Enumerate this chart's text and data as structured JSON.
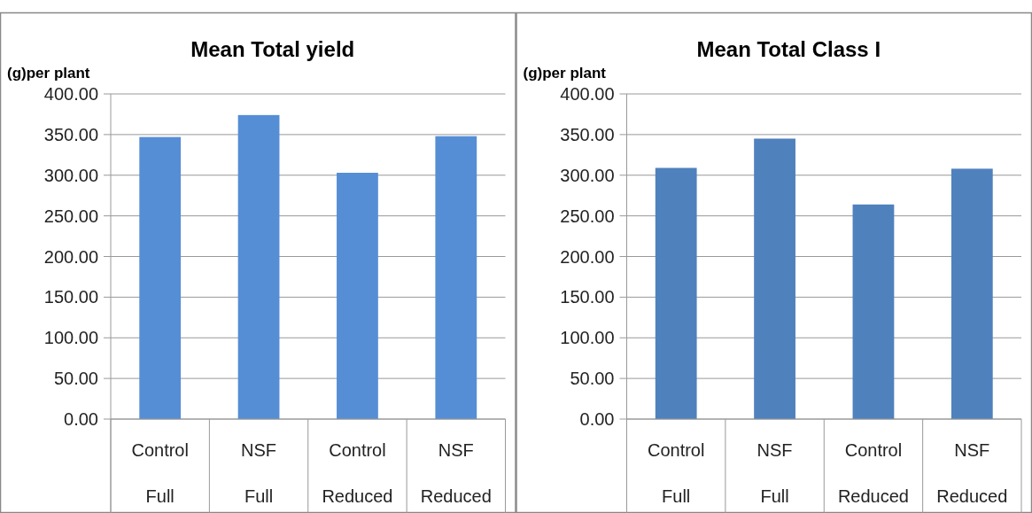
{
  "chart_data": [
    {
      "type": "bar",
      "title": "Mean Total yield",
      "ylabel": "(g)per plant",
      "categories": [
        "Control Full",
        "NSF Full",
        "Control Reduced",
        "NSF Reduced"
      ],
      "values": [
        347,
        374,
        303,
        348
      ],
      "color": "#558ed5",
      "ylim": [
        0,
        400
      ],
      "yticks": [
        {
          "value": 0,
          "label": "0.00"
        },
        {
          "value": 50,
          "label": "50.00"
        },
        {
          "value": 100,
          "label": "100.00"
        },
        {
          "value": 150,
          "label": "150.00"
        },
        {
          "value": 200,
          "label": "200.00"
        },
        {
          "value": 250,
          "label": "250.00"
        },
        {
          "value": 300,
          "label": "300.00"
        },
        {
          "value": 350,
          "label": "350.00"
        },
        {
          "value": 400,
          "label": "400.00"
        }
      ],
      "grid": "y"
    },
    {
      "type": "bar",
      "title": "Mean Total Class I",
      "ylabel": "(g)per plant",
      "categories": [
        "Control Full",
        "NSF Full",
        "Control Reduced",
        "NSF Reduced"
      ],
      "values": [
        309,
        345,
        264,
        308
      ],
      "color": "#4f81bd",
      "ylim": [
        0,
        400
      ],
      "yticks": [
        {
          "value": 0,
          "label": "0.00"
        },
        {
          "value": 50,
          "label": "50.00"
        },
        {
          "value": 100,
          "label": "100.00"
        },
        {
          "value": 150,
          "label": "150.00"
        },
        {
          "value": 200,
          "label": "200.00"
        },
        {
          "value": 250,
          "label": "250.00"
        },
        {
          "value": 300,
          "label": "300.00"
        },
        {
          "value": 350,
          "label": "350.00"
        },
        {
          "value": 400,
          "label": "400.00"
        }
      ],
      "grid": "y"
    }
  ]
}
